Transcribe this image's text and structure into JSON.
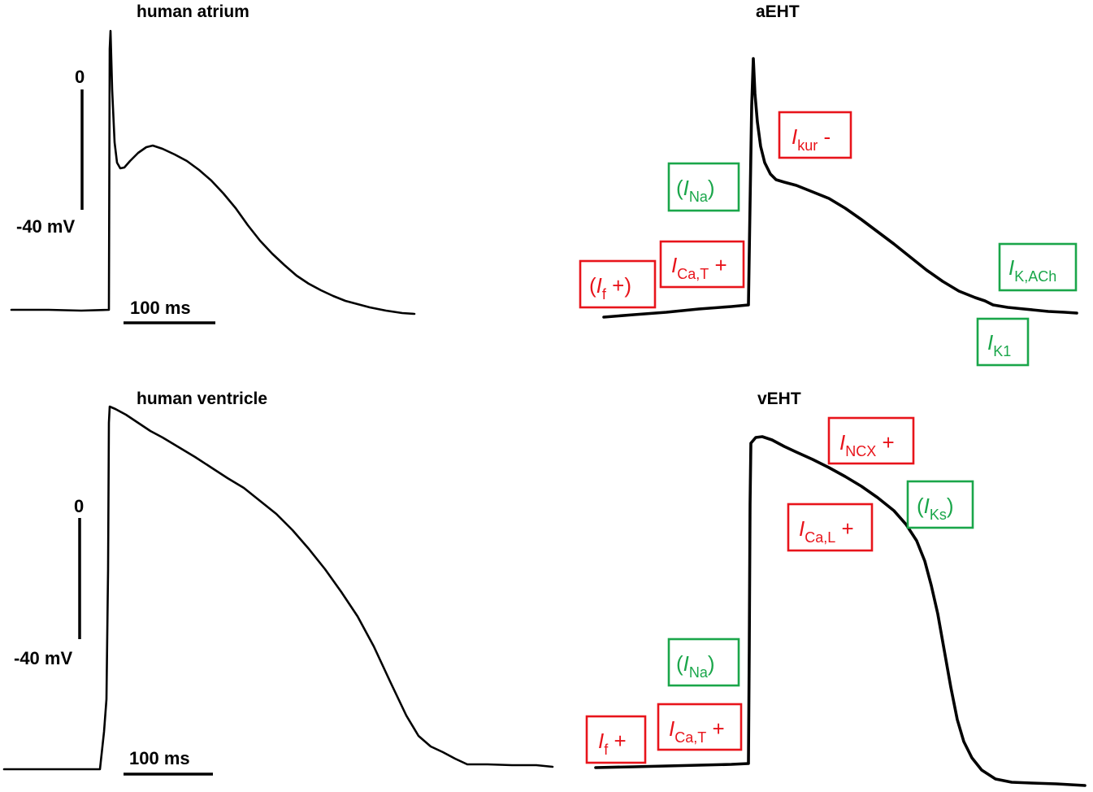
{
  "colors": {
    "increase": "#e8141b",
    "decrease": "#1aa64a"
  },
  "panels": {
    "human_atrium": {
      "title": "human atrium",
      "scale_zero": "0",
      "scale_mv": "-40 mV",
      "scale_time": "100 ms"
    },
    "aEHT": {
      "title": "aEHT",
      "currents": [
        {
          "pre": "",
          "sym": "I",
          "sub": "kur",
          "post": " -",
          "change": "increase"
        },
        {
          "pre": "(",
          "sym": "I",
          "sub": "Na",
          "post": ")",
          "change": "decrease"
        },
        {
          "pre": "",
          "sym": "I",
          "sub": "Ca,T",
          "post": " +",
          "change": "increase"
        },
        {
          "pre": "(",
          "sym": "I",
          "sub": "f",
          "post": " +)",
          "change": "increase"
        },
        {
          "pre": "",
          "sym": "I",
          "sub": "K,ACh",
          "post": "",
          "change": "decrease"
        },
        {
          "pre": "",
          "sym": "I",
          "sub": "K1",
          "post": "",
          "change": "decrease"
        }
      ]
    },
    "human_ventricle": {
      "title": "human ventricle",
      "scale_zero": "0",
      "scale_mv": "-40 mV",
      "scale_time": "100 ms"
    },
    "vEHT": {
      "title": "vEHT",
      "currents": [
        {
          "pre": "",
          "sym": "I",
          "sub": "NCX",
          "post": " +",
          "change": "increase"
        },
        {
          "pre": "(",
          "sym": "I",
          "sub": "Ks",
          "post": ")",
          "change": "decrease"
        },
        {
          "pre": "",
          "sym": "I",
          "sub": "Ca,L",
          "post": " +",
          "change": "increase"
        },
        {
          "pre": "(",
          "sym": "I",
          "sub": "Na",
          "post": ")",
          "change": "decrease"
        },
        {
          "pre": "",
          "sym": "I",
          "sub": "f",
          "post": " +",
          "change": "increase"
        },
        {
          "pre": "",
          "sym": "I",
          "sub": "Ca,T",
          "post": " +",
          "change": "increase"
        }
      ]
    }
  }
}
